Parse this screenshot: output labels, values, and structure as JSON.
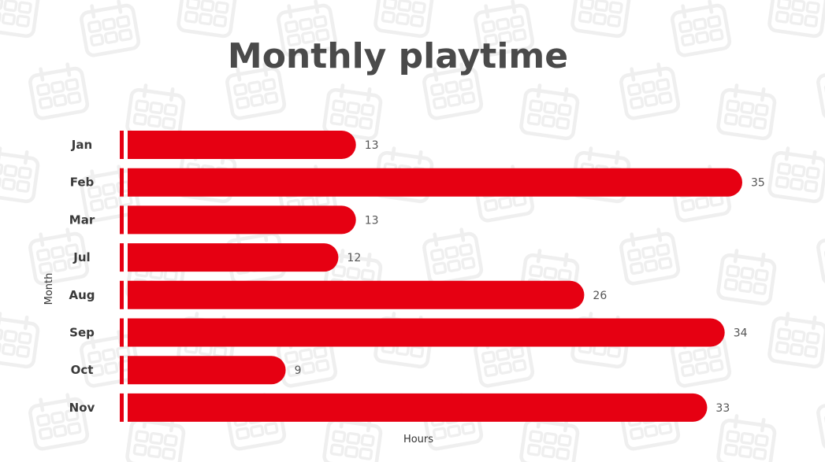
{
  "chart_data": {
    "type": "bar",
    "orientation": "horizontal",
    "title": "Monthly playtime",
    "xlabel": "Hours",
    "ylabel": "Month",
    "categories": [
      "Jan",
      "Feb",
      "Mar",
      "Jul",
      "Aug",
      "Sep",
      "Oct",
      "Nov"
    ],
    "values": [
      13,
      35,
      13,
      12,
      26,
      34,
      9,
      33
    ],
    "xlim": [
      0,
      35
    ],
    "grid": false,
    "data_labels": true
  },
  "colors": {
    "bar": "#e60012",
    "title": "#4a4a4a",
    "background": "#ffffff",
    "pattern": "#efefef"
  },
  "background_pattern_icon": "calendar-icon"
}
